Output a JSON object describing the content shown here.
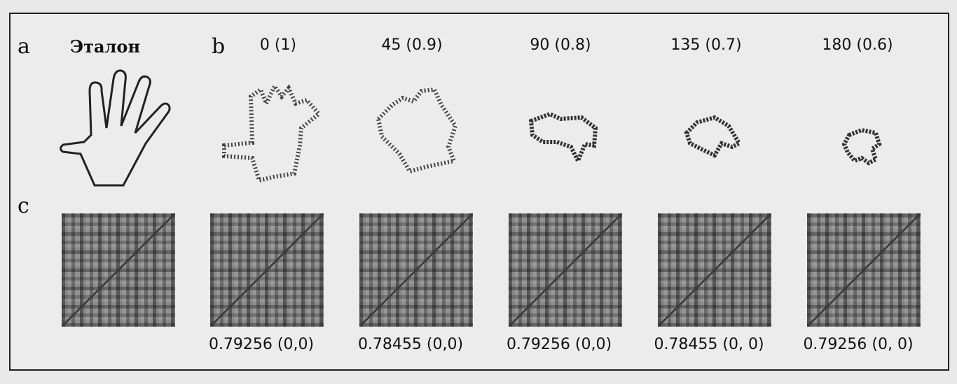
{
  "figure": {
    "labels": {
      "a": "a",
      "b": "b",
      "c": "c"
    },
    "reference_title": "Эталон",
    "angles": [
      "0  (1)",
      "45  (0.9)",
      "90  (0.8)",
      "135  (0.7)",
      "180  (0.6)"
    ],
    "correlations": [
      "0.79256 (0,0)",
      "0.78455 (0,0)",
      "0.79256 (0,0)",
      "0.78455 (0, 0)",
      "0.79256 (0, 0)"
    ]
  }
}
